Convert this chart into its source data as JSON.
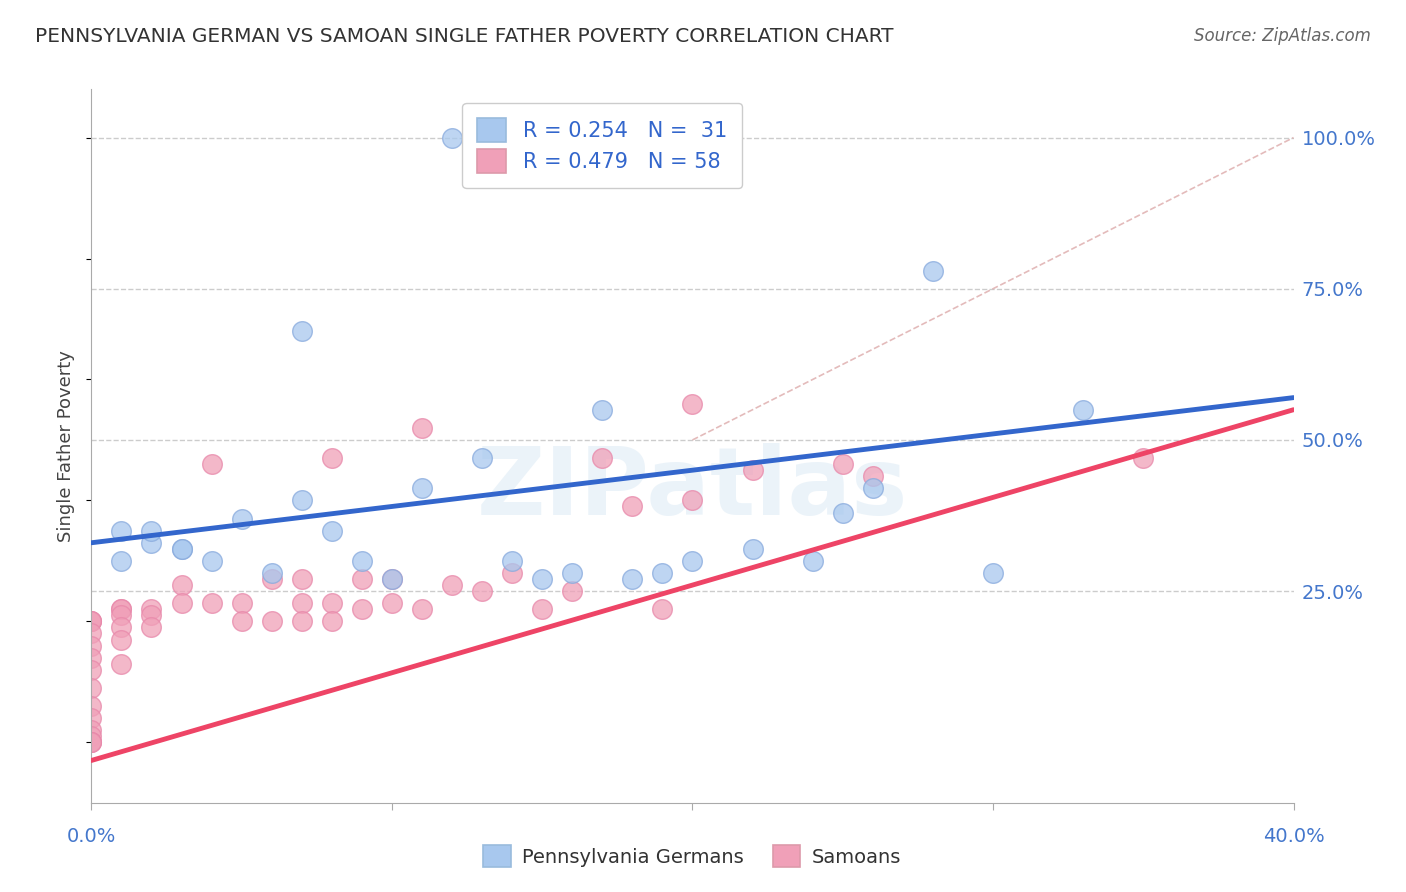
{
  "title": "PENNSYLVANIA GERMAN VS SAMOAN SINGLE FATHER POVERTY CORRELATION CHART",
  "source": "Source: ZipAtlas.com",
  "ylabel": "Single Father Poverty",
  "ytick_labels": [
    "100.0%",
    "75.0%",
    "50.0%",
    "25.0%"
  ],
  "ytick_positions": [
    1.0,
    0.75,
    0.5,
    0.25
  ],
  "xmin": 0.0,
  "xmax": 0.4,
  "ymin": -0.1,
  "ymax": 1.08,
  "blue_color": "#A8C8EE",
  "pink_color": "#F0A0B8",
  "line_blue_color": "#3366CC",
  "line_pink_color": "#EE4466",
  "watermark": "ZIPatlas",
  "blue_scatter_x": [
    0.12,
    0.28,
    0.07,
    0.01,
    0.02,
    0.03,
    0.04,
    0.05,
    0.06,
    0.07,
    0.08,
    0.09,
    0.1,
    0.11,
    0.13,
    0.14,
    0.15,
    0.16,
    0.17,
    0.18,
    0.19,
    0.2,
    0.22,
    0.24,
    0.25,
    0.26,
    0.3,
    0.33,
    0.03,
    0.02,
    0.01
  ],
  "blue_scatter_y": [
    1.0,
    0.78,
    0.68,
    0.35,
    0.33,
    0.32,
    0.3,
    0.37,
    0.28,
    0.4,
    0.35,
    0.3,
    0.27,
    0.42,
    0.47,
    0.3,
    0.27,
    0.28,
    0.55,
    0.27,
    0.28,
    0.3,
    0.32,
    0.3,
    0.38,
    0.42,
    0.28,
    0.55,
    0.32,
    0.35,
    0.3
  ],
  "pink_scatter_x": [
    0.0,
    0.0,
    0.0,
    0.0,
    0.0,
    0.0,
    0.0,
    0.0,
    0.0,
    0.0,
    0.0,
    0.0,
    0.0,
    0.0,
    0.0,
    0.01,
    0.01,
    0.01,
    0.01,
    0.01,
    0.01,
    0.02,
    0.02,
    0.02,
    0.03,
    0.03,
    0.04,
    0.04,
    0.05,
    0.05,
    0.06,
    0.06,
    0.07,
    0.07,
    0.07,
    0.08,
    0.08,
    0.08,
    0.09,
    0.09,
    0.1,
    0.1,
    0.11,
    0.11,
    0.12,
    0.13,
    0.14,
    0.15,
    0.16,
    0.17,
    0.18,
    0.19,
    0.2,
    0.2,
    0.22,
    0.25,
    0.26,
    0.35
  ],
  "pink_scatter_y": [
    0.2,
    0.2,
    0.2,
    0.18,
    0.16,
    0.14,
    0.12,
    0.09,
    0.06,
    0.04,
    0.02,
    0.01,
    0.0,
    0.0,
    0.0,
    0.22,
    0.22,
    0.21,
    0.19,
    0.17,
    0.13,
    0.22,
    0.21,
    0.19,
    0.26,
    0.23,
    0.46,
    0.23,
    0.23,
    0.2,
    0.27,
    0.2,
    0.27,
    0.23,
    0.2,
    0.47,
    0.23,
    0.2,
    0.27,
    0.22,
    0.27,
    0.23,
    0.52,
    0.22,
    0.26,
    0.25,
    0.28,
    0.22,
    0.25,
    0.47,
    0.39,
    0.22,
    0.56,
    0.4,
    0.45,
    0.46,
    0.44,
    0.47
  ],
  "blue_line_x": [
    0.0,
    0.4
  ],
  "blue_line_y": [
    0.33,
    0.57
  ],
  "pink_line_x": [
    0.0,
    0.4
  ],
  "pink_line_y": [
    -0.03,
    0.55
  ],
  "ref_line_x": [
    0.2,
    0.4
  ],
  "ref_line_y": [
    0.5,
    1.0
  ]
}
